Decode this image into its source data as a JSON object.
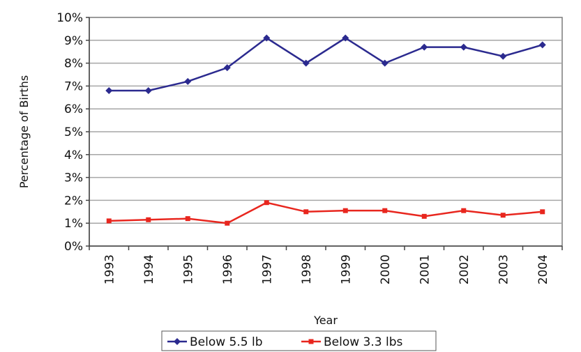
{
  "chart_data": {
    "type": "line",
    "title": "",
    "xlabel": "Year",
    "ylabel": "Percentage of Births",
    "categories": [
      "1993",
      "1994",
      "1995",
      "1996",
      "1997",
      "1998",
      "1999",
      "2000",
      "2001",
      "2002",
      "2003",
      "2004"
    ],
    "y_ticks": [
      "0%",
      "1%",
      "2%",
      "3%",
      "4%",
      "5%",
      "6%",
      "7%",
      "8%",
      "9%",
      "10%"
    ],
    "ylim": [
      0,
      10
    ],
    "y_unit": "%",
    "grid": "horizontal",
    "legend_position": "bottom",
    "series": [
      {
        "name": "Below 5.5 lb",
        "color": "#2b2a8f",
        "values": [
          6.8,
          6.8,
          7.2,
          7.8,
          9.1,
          8.0,
          9.1,
          8.0,
          8.7,
          8.7,
          8.3,
          8.8
        ]
      },
      {
        "name": "Below 3.3 lbs",
        "color": "#e8261e",
        "values": [
          1.1,
          1.15,
          1.2,
          1.0,
          1.9,
          1.5,
          1.55,
          1.55,
          1.3,
          1.55,
          1.35,
          1.5
        ]
      }
    ]
  }
}
